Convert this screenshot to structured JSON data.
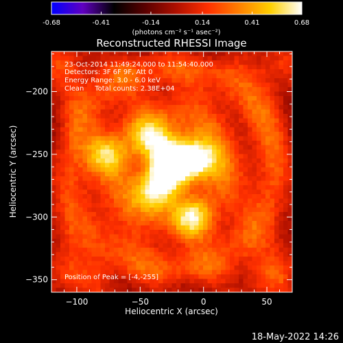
{
  "colorbar": {
    "tick_labels": [
      "-0.68",
      "-0.41",
      "-0.14",
      "0.14",
      "0.41",
      "0.68"
    ],
    "tick_values": [
      -0.68,
      -0.41,
      -0.14,
      0.14,
      0.41,
      0.68
    ],
    "range": [
      -0.68,
      0.68
    ],
    "units_label": "(photons cm⁻² s⁻¹ asec⁻²)",
    "stops": [
      "#0000ff",
      "#6000c0",
      "#000000",
      "#5a0000",
      "#b01000",
      "#ff3000",
      "#ff8000",
      "#ffd000",
      "#ffffff"
    ]
  },
  "chart_data": {
    "type": "heatmap",
    "title": "Reconstructed RHESSI Image",
    "xlabel": "Heliocentric X (arcsec)",
    "ylabel": "Heliocentric Y (arcsec)",
    "xlim": [
      -120,
      70
    ],
    "ylim": [
      -360,
      -168
    ],
    "xticks": [
      -100,
      -50,
      0,
      50
    ],
    "yticks": [
      -350,
      -300,
      -250,
      -200
    ],
    "annotations": [
      "23-Oct-2014 11:49:24.000 to 11:54:40.000",
      "Detectors: 3F 6F 9F, Att 0",
      "Energy Range: 3.0 - 6.0 keV",
      "Clean     Total counts: 2.38E+04"
    ],
    "peak_label": "Position of Peak = [-4,-255]",
    "peak": [
      -4,
      -255
    ],
    "sources": [
      {
        "x": -4,
        "y": -255,
        "intensity": 0.68
      },
      {
        "x": -20,
        "y": -252,
        "intensity": 0.62
      },
      {
        "x": -40,
        "y": -238,
        "intensity": 0.55
      },
      {
        "x": -40,
        "y": -280,
        "intensity": 0.58
      },
      {
        "x": -78,
        "y": -250,
        "intensity": 0.5
      },
      {
        "x": -8,
        "y": -302,
        "intensity": 0.48
      },
      {
        "x": -30,
        "y": -265,
        "intensity": 0.5
      }
    ],
    "grid": false
  },
  "footer": {
    "timestamp": "18-May-2022 14:26"
  }
}
